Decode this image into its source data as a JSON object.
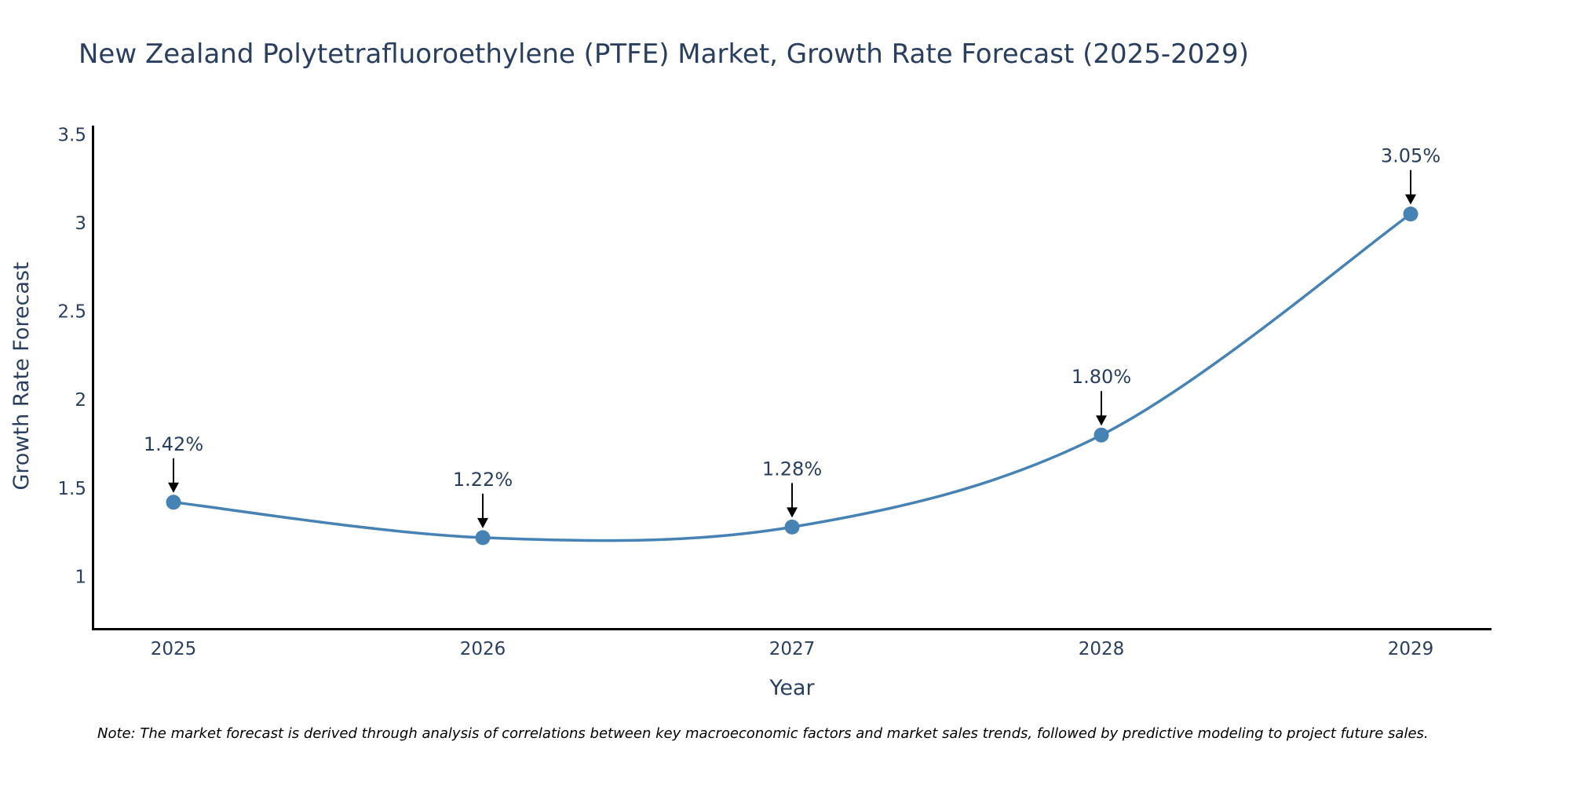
{
  "chart_data": {
    "type": "line",
    "title": "New Zealand Polytetrafluoroethylene (PTFE) Market, Growth Rate Forecast (2025-2029)",
    "xlabel": "Year",
    "ylabel": "Growth Rate Forecast",
    "categories": [
      "2025",
      "2026",
      "2027",
      "2028",
      "2029"
    ],
    "values": [
      1.42,
      1.22,
      1.28,
      1.8,
      3.05
    ],
    "data_labels": [
      "1.42%",
      "1.22%",
      "1.28%",
      "1.80%",
      "3.05%"
    ],
    "y_ticks": [
      1,
      1.5,
      2,
      2.5,
      3,
      3.5
    ],
    "y_tick_labels": [
      "1",
      "1.5",
      "2",
      "2.5",
      "3",
      "3.5"
    ],
    "ylim": [
      0.7,
      3.55
    ],
    "line_shape": "spline",
    "grid": false,
    "colors": {
      "line": "#4682b4",
      "marker": "#4682b4",
      "arrow": "#000000",
      "axis": "#000000",
      "text": "#2a3f5f"
    }
  },
  "note": "Note: The market forecast is derived through analysis of correlations between key macroeconomic factors and market sales trends, followed by predictive modeling to project future sales."
}
